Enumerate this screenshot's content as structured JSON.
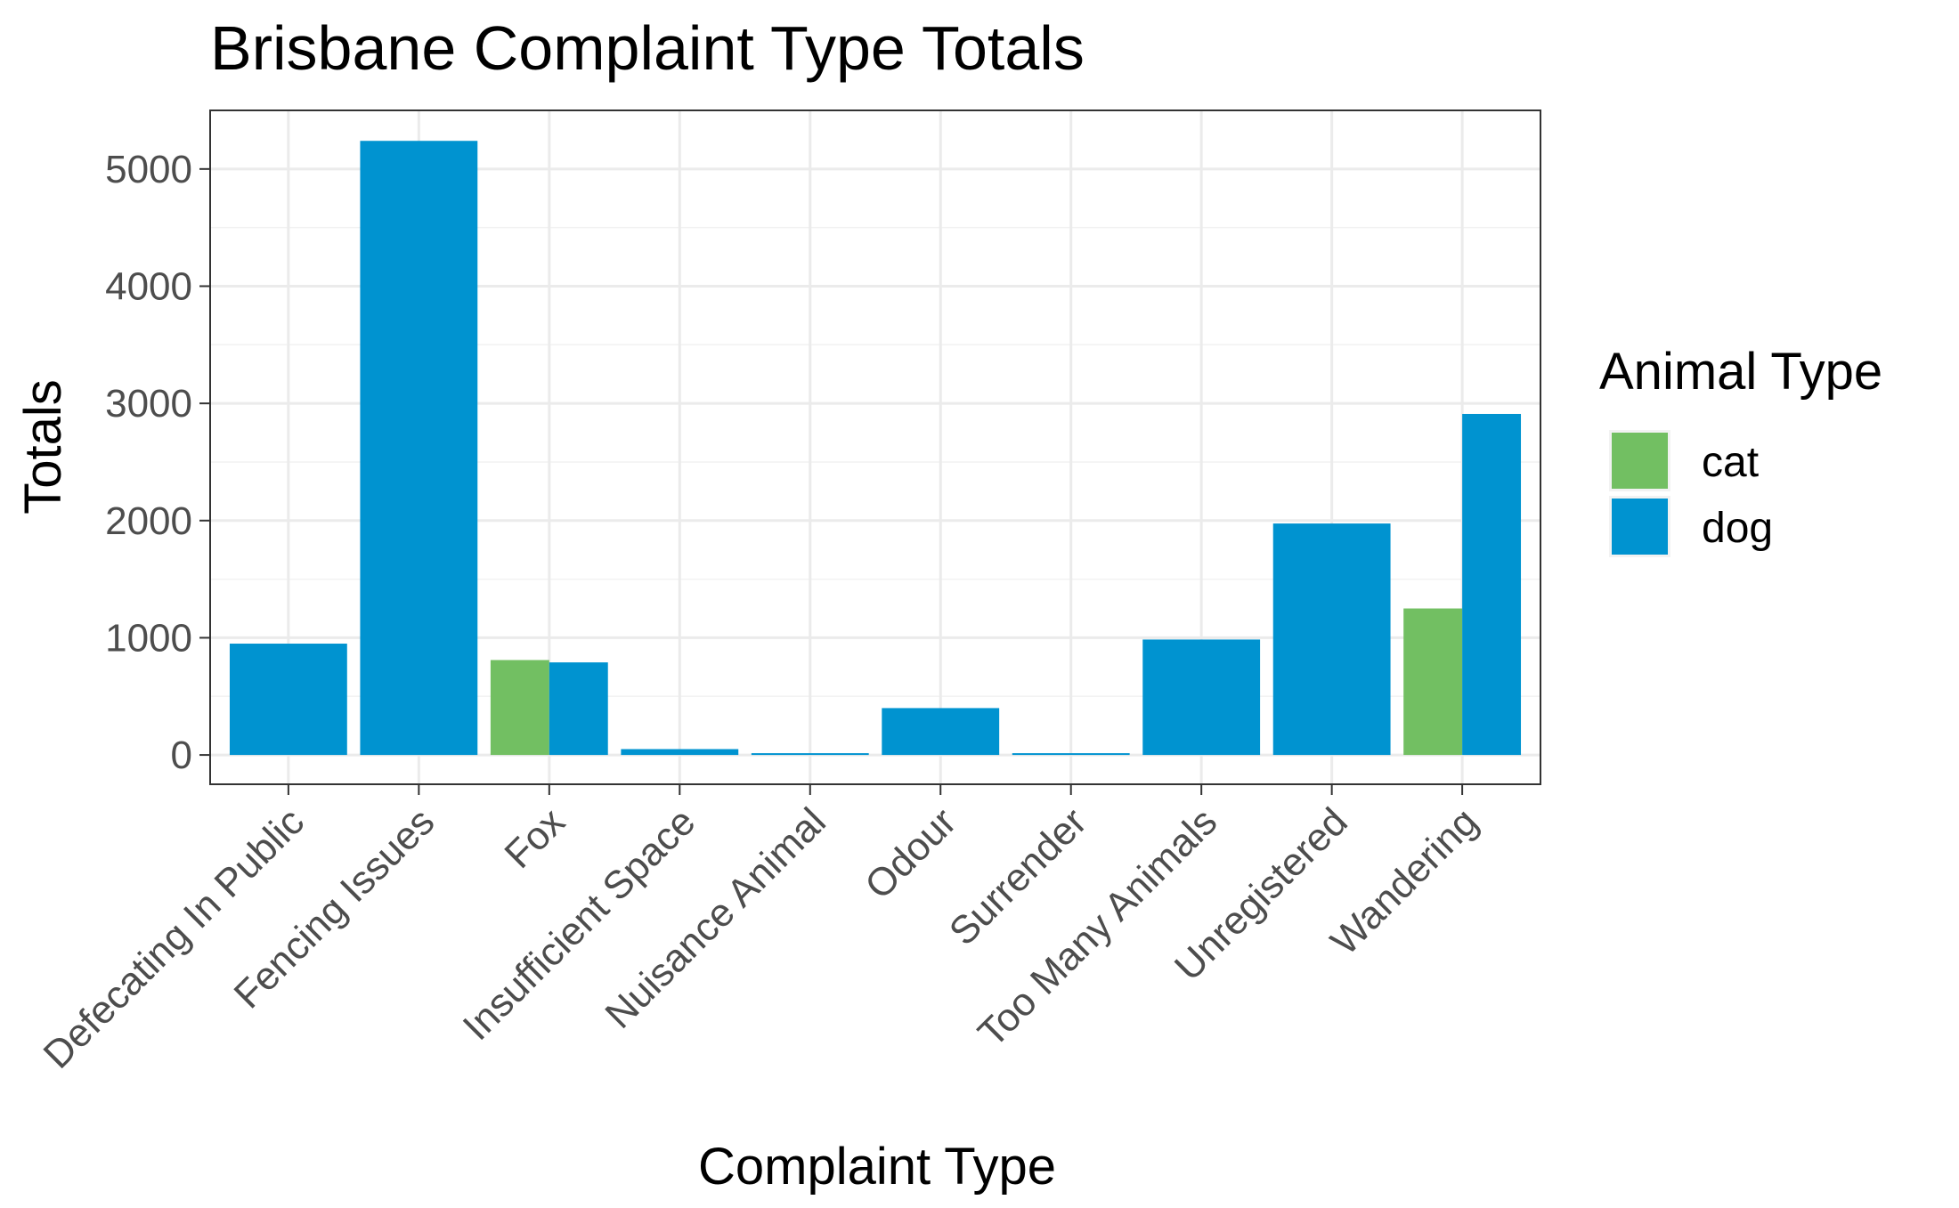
{
  "chart_data": {
    "type": "bar",
    "title": "Brisbane Complaint Type Totals",
    "xlabel": "Complaint Type",
    "ylabel": "Totals",
    "categories": [
      "Defecating In Public",
      "Fencing Issues",
      "Fox",
      "Insufficient Space",
      "Nuisance Animal",
      "Odour",
      "Surrender",
      "Too Many Animals",
      "Unregistered",
      "Wandering"
    ],
    "series": [
      {
        "name": "cat",
        "color": "#72bf62",
        "values": [
          null,
          null,
          810,
          null,
          null,
          null,
          null,
          null,
          null,
          1250
        ]
      },
      {
        "name": "dog",
        "color": "#0093d0",
        "values": [
          950,
          5240,
          790,
          50,
          3,
          400,
          10,
          985,
          1975,
          2910
        ]
      }
    ],
    "ylim": [
      -250,
      5500
    ],
    "yticks": [
      0,
      1000,
      2000,
      3000,
      4000,
      5000
    ],
    "grid": true,
    "legend": {
      "title": "Animal Type",
      "position": "right"
    }
  }
}
